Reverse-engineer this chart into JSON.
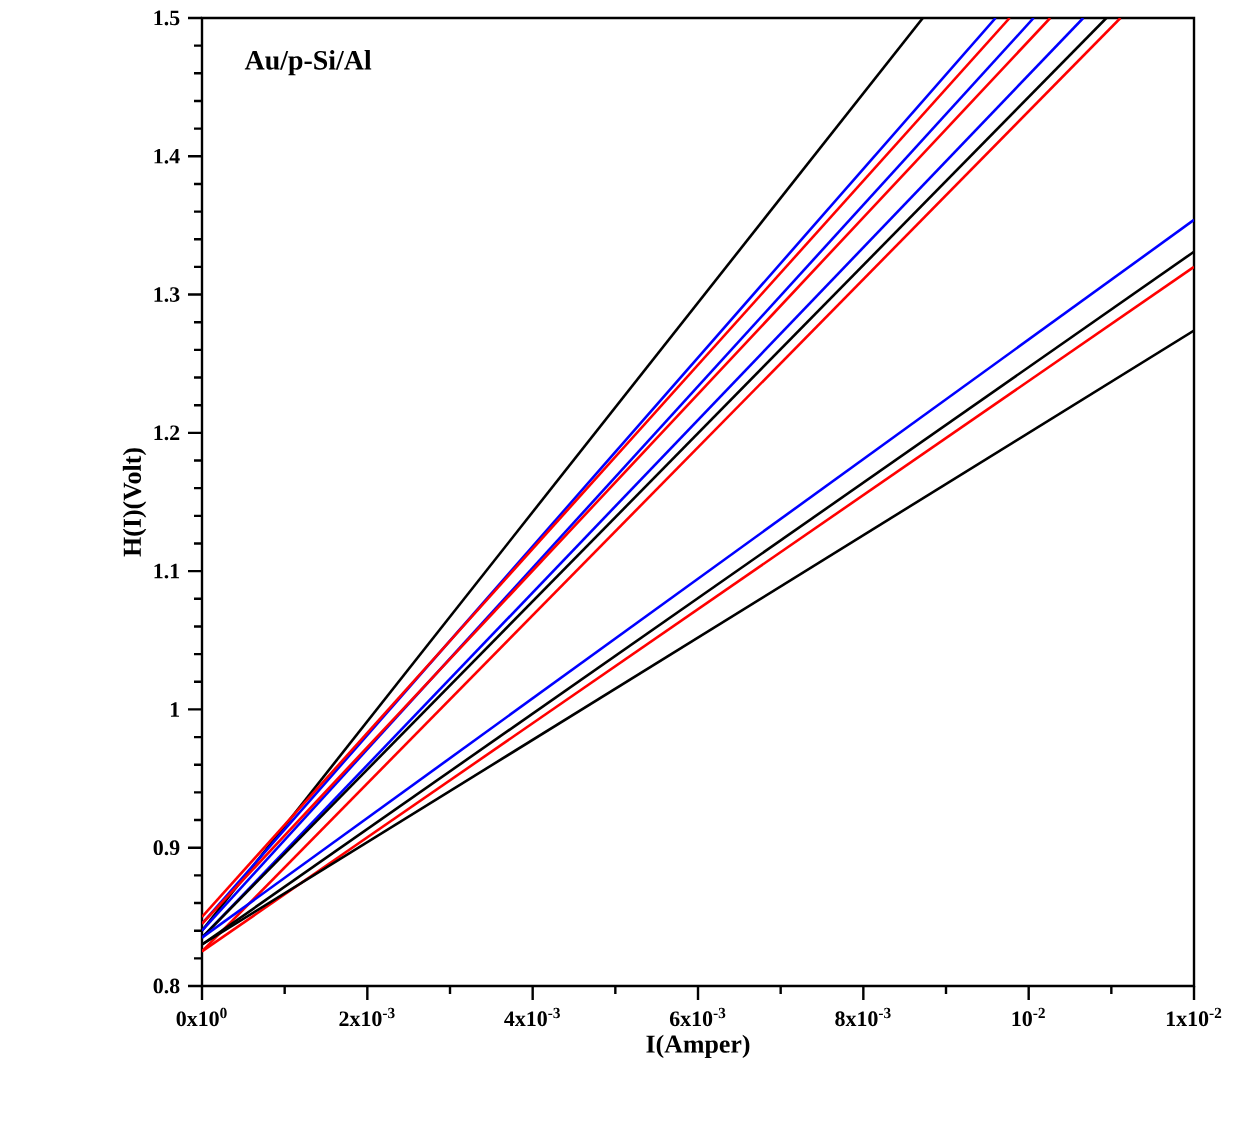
{
  "chart_data": {
    "type": "line",
    "xlabel": "I(Amper)",
    "ylabel": "H(I)(Volt)",
    "annotations": [
      "Au/p-Si/Al"
    ],
    "xlim": [
      0,
      0.012
    ],
    "ylim": [
      0.8,
      1.5
    ],
    "xticks": [
      {
        "value": 0,
        "label": "0x10$^{0}$"
      },
      {
        "value": 0.002,
        "label": "2x10$^{-3}$"
      },
      {
        "value": 0.004,
        "label": "4x10$^{-3}$"
      },
      {
        "value": 0.006,
        "label": "6x10$^{-3}$"
      },
      {
        "value": 0.008,
        "label": "8x10$^{-3}$"
      },
      {
        "value": 0.01,
        "label": "10$^{-2}$"
      },
      {
        "value": 0.012,
        "label": "1x10$^{-2}$"
      }
    ],
    "yticks": [
      0.8,
      0.9,
      1,
      1.1,
      1.2,
      1.3,
      1.4,
      1.5
    ],
    "grid": false,
    "marker": "none",
    "line_style": "solid",
    "series": [
      {
        "color": "#000000",
        "x": [
          0,
          0.00872
        ],
        "values": [
          0.84,
          1.5
        ]
      },
      {
        "color": "#0000ff",
        "x": [
          0,
          0.0096
        ],
        "values": [
          0.845,
          1.5
        ]
      },
      {
        "color": "#ff0000",
        "x": [
          0,
          0.00977
        ],
        "values": [
          0.85,
          1.5
        ]
      },
      {
        "color": "#0000ff",
        "x": [
          0,
          0.01006
        ],
        "values": [
          0.84,
          1.5
        ]
      },
      {
        "color": "#ff0000",
        "x": [
          0,
          0.01026
        ],
        "values": [
          0.845,
          1.5
        ]
      },
      {
        "color": "#0000ff",
        "x": [
          0,
          0.01066
        ],
        "values": [
          0.835,
          1.5
        ]
      },
      {
        "color": "#000000",
        "x": [
          0,
          0.01094
        ],
        "values": [
          0.835,
          1.5
        ]
      },
      {
        "color": "#ff0000",
        "x": [
          0,
          0.01111
        ],
        "values": [
          0.825,
          1.5
        ]
      },
      {
        "color": "#0000ff",
        "x": [
          0,
          0.012
        ],
        "values": [
          0.835,
          1.354
        ]
      },
      {
        "color": "#000000",
        "x": [
          0,
          0.012
        ],
        "values": [
          0.83,
          1.331
        ]
      },
      {
        "color": "#ff0000",
        "x": [
          0,
          0.012
        ],
        "values": [
          0.825,
          1.32
        ]
      },
      {
        "color": "#000000",
        "x": [
          0,
          0.012
        ],
        "values": [
          0.83,
          1.274
        ]
      }
    ]
  }
}
